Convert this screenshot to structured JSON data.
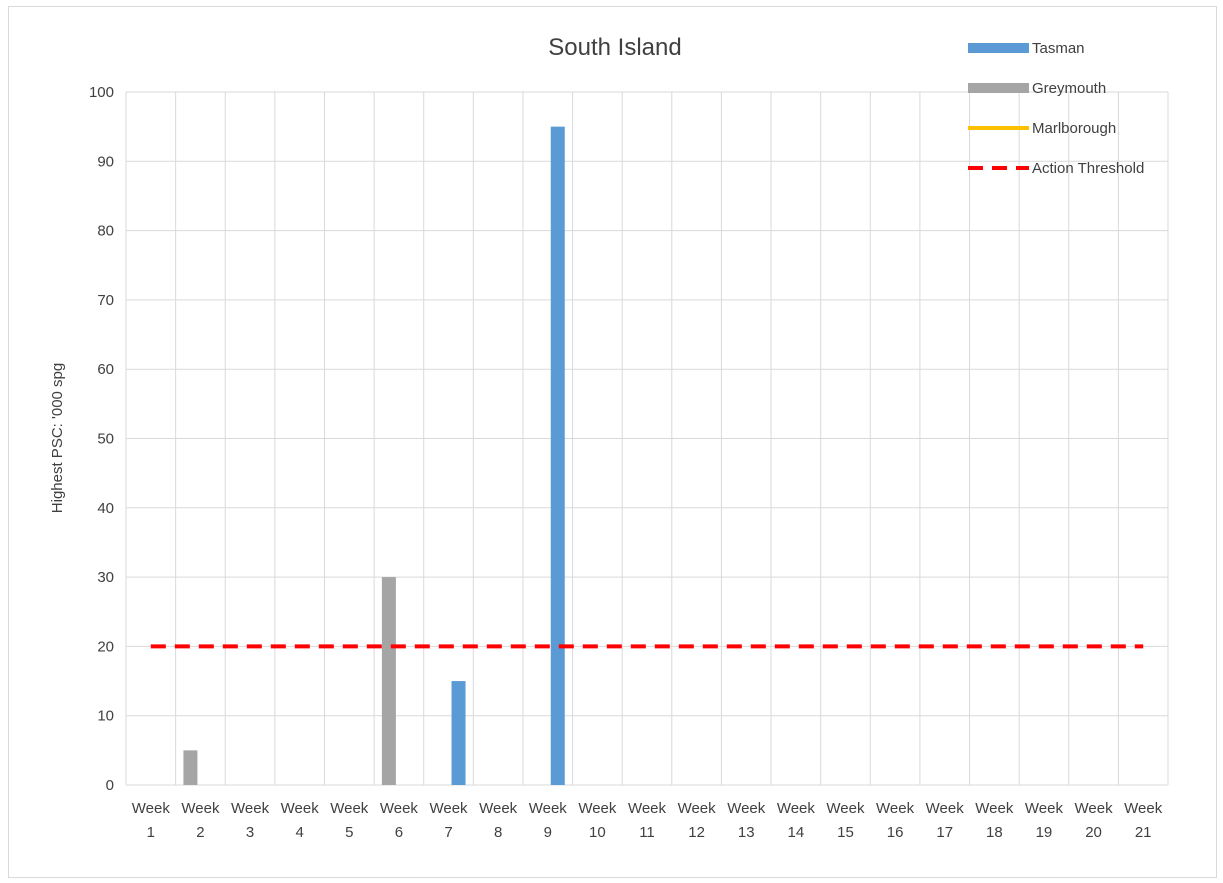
{
  "chart_data": {
    "type": "bar",
    "title": "South Island",
    "xlabel": "",
    "ylabel": "Highest PSC: '000 spg",
    "ylim": [
      0,
      100
    ],
    "yticks": [
      0,
      10,
      20,
      30,
      40,
      50,
      60,
      70,
      80,
      90,
      100
    ],
    "grid": true,
    "legend_position": "top-right",
    "categories": [
      {
        "line1": "Week",
        "line2": "1"
      },
      {
        "line1": "Week",
        "line2": "2"
      },
      {
        "line1": "Week",
        "line2": "3"
      },
      {
        "line1": "Week",
        "line2": "4"
      },
      {
        "line1": "Week",
        "line2": "5"
      },
      {
        "line1": "Week",
        "line2": "6"
      },
      {
        "line1": "Week",
        "line2": "7"
      },
      {
        "line1": "Week",
        "line2": "8"
      },
      {
        "line1": "Week",
        "line2": "9"
      },
      {
        "line1": "Week",
        "line2": "10"
      },
      {
        "line1": "Week",
        "line2": "11"
      },
      {
        "line1": "Week",
        "line2": "12"
      },
      {
        "line1": "Week",
        "line2": "13"
      },
      {
        "line1": "Week",
        "line2": "14"
      },
      {
        "line1": "Week",
        "line2": "15"
      },
      {
        "line1": "Week",
        "line2": "16"
      },
      {
        "line1": "Week",
        "line2": "17"
      },
      {
        "line1": "Week",
        "line2": "18"
      },
      {
        "line1": "Week",
        "line2": "19"
      },
      {
        "line1": "Week",
        "line2": "20"
      },
      {
        "line1": "Week",
        "line2": "21"
      }
    ],
    "series": [
      {
        "name": "Tasman",
        "type": "bar",
        "color": "#5b9bd5",
        "values": [
          0,
          0,
          0,
          0,
          0,
          0,
          15,
          0,
          95,
          0,
          0,
          0,
          0,
          0,
          0,
          0,
          0,
          0,
          0,
          0,
          0
        ]
      },
      {
        "name": "Greymouth",
        "type": "bar",
        "color": "#a5a5a5",
        "values": [
          0,
          5,
          0,
          0,
          0,
          30,
          0,
          0,
          0,
          0,
          0,
          0,
          0,
          0,
          0,
          0,
          0,
          0,
          0,
          0,
          0
        ]
      },
      {
        "name": "Marlborough",
        "type": "line",
        "color": "#ffc000",
        "values": [
          null,
          null,
          null,
          null,
          null,
          null,
          null,
          null,
          null,
          null,
          null,
          null,
          null,
          null,
          null,
          null,
          null,
          null,
          null,
          null,
          null
        ]
      },
      {
        "name": "Action Threshold",
        "type": "line",
        "style": "dashed",
        "color": "#ff0000",
        "values": [
          20,
          20,
          20,
          20,
          20,
          20,
          20,
          20,
          20,
          20,
          20,
          20,
          20,
          20,
          20,
          20,
          20,
          20,
          20,
          20,
          20
        ]
      }
    ]
  }
}
